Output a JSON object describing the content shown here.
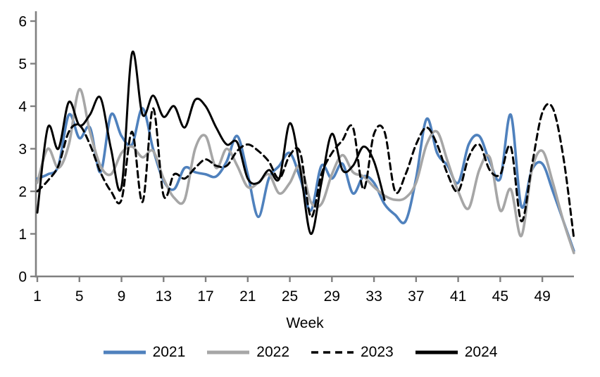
{
  "chart_data": {
    "type": "line",
    "title": "",
    "xlabel": "Week",
    "ylim": [
      0,
      6
    ],
    "yticks": [
      0,
      1,
      2,
      3,
      4,
      5,
      6
    ],
    "xticks": [
      1,
      5,
      9,
      13,
      17,
      21,
      25,
      29,
      33,
      37,
      41,
      45,
      49
    ],
    "x_range": [
      1,
      52
    ],
    "grid": "off",
    "legend_position": "bottom",
    "axis_color": "#808080",
    "background_color": "#ffffff",
    "x": [
      1,
      2,
      3,
      4,
      5,
      6,
      7,
      8,
      9,
      10,
      11,
      12,
      13,
      14,
      15,
      16,
      17,
      18,
      19,
      20,
      21,
      22,
      23,
      24,
      25,
      26,
      27,
      28,
      29,
      30,
      31,
      32,
      33,
      34,
      35,
      36,
      37,
      38,
      39,
      40,
      41,
      42,
      43,
      44,
      45,
      46,
      47,
      48,
      49,
      50,
      51,
      52
    ],
    "series": [
      {
        "name": "2021",
        "color": "#4F81BD",
        "line_style": "solid",
        "values": [
          2.3,
          2.4,
          2.6,
          3.8,
          3.25,
          3.5,
          2.45,
          3.8,
          3.3,
          3.1,
          3.95,
          3.0,
          2.25,
          2.05,
          2.55,
          2.45,
          2.4,
          2.35,
          2.7,
          3.3,
          2.4,
          1.4,
          2.3,
          2.6,
          2.9,
          2.3,
          1.55,
          2.6,
          2.3,
          2.65,
          1.95,
          2.35,
          2.2,
          1.7,
          1.45,
          1.3,
          2.3,
          3.7,
          2.9,
          2.6,
          2.2,
          3.1,
          3.3,
          2.7,
          2.3,
          3.8,
          1.65,
          2.5,
          2.65,
          2.0,
          1.3,
          0.6
        ]
      },
      {
        "name": "2022",
        "color": "#A6A6A6",
        "line_style": "solid",
        "values": [
          2.2,
          3.0,
          2.55,
          3.1,
          4.4,
          3.4,
          2.6,
          2.4,
          2.9,
          3.05,
          2.8,
          2.95,
          2.3,
          1.85,
          1.8,
          3.0,
          3.3,
          2.55,
          3.0,
          2.6,
          2.1,
          2.2,
          2.4,
          1.95,
          2.2,
          2.6,
          1.75,
          1.7,
          2.4,
          2.85,
          2.45,
          2.35,
          2.1,
          1.9,
          1.8,
          1.85,
          2.2,
          3.1,
          3.4,
          2.7,
          2.0,
          1.6,
          2.5,
          2.8,
          1.55,
          2.05,
          0.95,
          2.5,
          2.95,
          2.2,
          1.3,
          0.55
        ]
      },
      {
        "name": "2023",
        "color": "#000000",
        "line_style": "dashed",
        "values": [
          2.0,
          2.25,
          2.6,
          3.4,
          3.55,
          3.1,
          2.45,
          2.0,
          1.8,
          3.4,
          1.75,
          3.95,
          1.9,
          2.4,
          2.3,
          2.55,
          2.75,
          2.6,
          2.6,
          2.95,
          3.1,
          2.95,
          2.7,
          2.3,
          2.85,
          2.9,
          1.4,
          2.4,
          2.9,
          3.2,
          3.5,
          2.05,
          3.35,
          3.4,
          2.0,
          2.4,
          3.1,
          3.5,
          3.1,
          2.4,
          2.0,
          2.8,
          3.1,
          2.5,
          2.4,
          3.05,
          1.3,
          2.6,
          3.85,
          3.95,
          2.8,
          0.9
        ]
      },
      {
        "name": "2024",
        "color": "#000000",
        "line_style": "solid",
        "values": [
          1.5,
          3.5,
          3.0,
          4.1,
          3.55,
          3.8,
          4.2,
          3.0,
          2.1,
          5.25,
          3.8,
          4.25,
          3.75,
          4.0,
          3.5,
          4.15,
          4.0,
          3.5,
          3.1,
          3.15,
          2.3,
          2.2,
          2.5,
          2.3,
          3.6,
          2.5,
          1.0,
          2.2,
          3.35,
          2.5,
          2.6,
          3.05,
          2.7,
          1.8,
          null,
          null,
          null,
          null,
          null,
          null,
          null,
          null,
          null,
          null,
          null,
          null,
          null,
          null,
          null,
          null,
          null,
          null
        ]
      }
    ]
  }
}
